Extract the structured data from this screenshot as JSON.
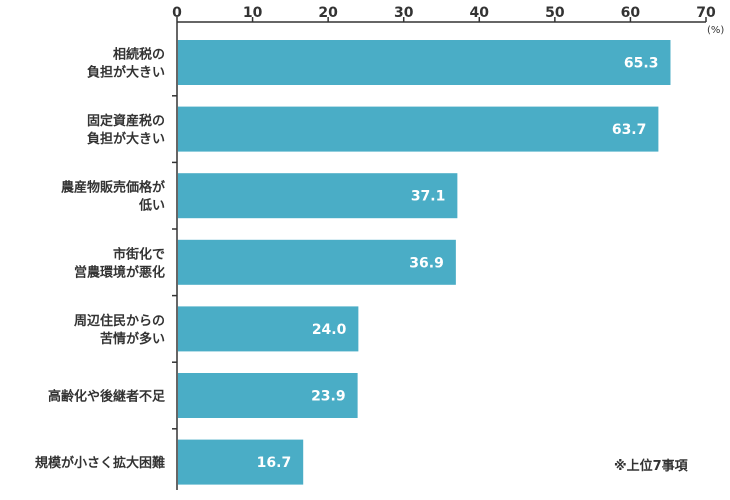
{
  "chart_data": {
    "type": "bar",
    "orientation": "horizontal",
    "categories": [
      [
        "相続税の",
        "負担が大きい"
      ],
      [
        "固定資産税の",
        "負担が大きい"
      ],
      [
        "農産物販売価格が",
        "低い"
      ],
      [
        "市街化で",
        "営農環境が悪化"
      ],
      [
        "周辺住民からの",
        "苦情が多い"
      ],
      [
        "高齢化や後継者不足"
      ],
      [
        "規模が小さく拡大困難"
      ]
    ],
    "values": [
      65.3,
      63.7,
      37.1,
      36.9,
      24.0,
      23.9,
      16.7
    ],
    "value_labels": [
      "65.3",
      "63.7",
      "37.1",
      "36.9",
      "24.0",
      "23.9",
      "16.7"
    ],
    "xlim": [
      0,
      70
    ],
    "x_ticks": [
      0,
      10,
      20,
      30,
      40,
      50,
      60,
      70
    ],
    "x_tick_labels": [
      "0",
      "10",
      "20",
      "30",
      "40",
      "50",
      "60",
      "70"
    ],
    "unit": "(%)",
    "note": "※上位7事項",
    "grid": false,
    "axis_position": "top",
    "bar_color": "#4aadc6",
    "axis_color": "#333333"
  }
}
